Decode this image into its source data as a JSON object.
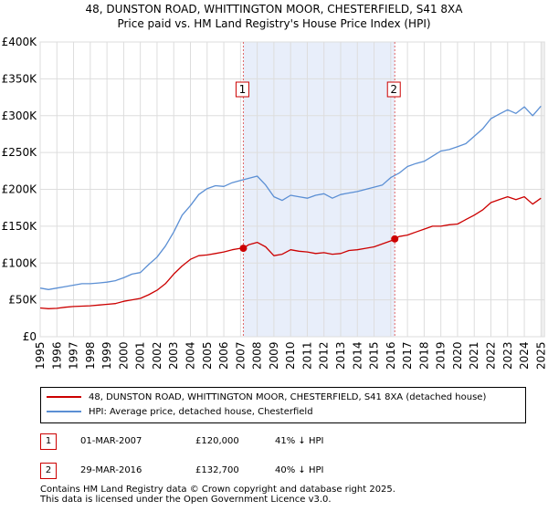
{
  "chart_data": {
    "type": "line",
    "title": "48, DUNSTON ROAD, WHITTINGTON MOOR, CHESTERFIELD, S41 8XA",
    "subtitle": "Price paid vs. HM Land Registry's House Price Index (HPI)",
    "xlabel": "",
    "ylabel": "",
    "xlim": [
      1995,
      2025.2
    ],
    "ylim": [
      0,
      400000
    ],
    "grid": true,
    "x_ticks": [
      "1995",
      "1996",
      "1997",
      "1998",
      "1999",
      "2000",
      "2001",
      "2002",
      "2003",
      "2004",
      "2005",
      "2006",
      "2007",
      "2008",
      "2009",
      "2010",
      "2011",
      "2012",
      "2013",
      "2014",
      "2015",
      "2016",
      "2017",
      "2018",
      "2019",
      "2020",
      "2021",
      "2022",
      "2023",
      "2024",
      "2025"
    ],
    "y_ticks": [
      {
        "value": 0,
        "label": "£0"
      },
      {
        "value": 50000,
        "label": "£50K"
      },
      {
        "value": 100000,
        "label": "£100K"
      },
      {
        "value": 150000,
        "label": "£150K"
      },
      {
        "value": 200000,
        "label": "£200K"
      },
      {
        "value": 250000,
        "label": "£250K"
      },
      {
        "value": 300000,
        "label": "£300K"
      },
      {
        "value": 350000,
        "label": "£350K"
      },
      {
        "value": 400000,
        "label": "£400K"
      }
    ],
    "shaded_region": {
      "from": 2007.17,
      "to": 2016.24
    },
    "markers": [
      {
        "id": "1",
        "x": 2007.17,
        "y": 120000
      },
      {
        "id": "2",
        "x": 2016.24,
        "y": 132700
      }
    ],
    "series": [
      {
        "name": "48, DUNSTON ROAD, WHITTINGTON MOOR, CHESTERFIELD, S41 8XA (detached house)",
        "color": "#cc0000",
        "x": [
          1995,
          1995.5,
          1996,
          1996.5,
          1997,
          1997.5,
          1998,
          1998.5,
          1999,
          1999.5,
          2000,
          2000.5,
          2001,
          2001.5,
          2002,
          2002.5,
          2003,
          2003.5,
          2004,
          2004.5,
          2005,
          2005.5,
          2006,
          2006.5,
          2007,
          2007.17,
          2007.5,
          2008,
          2008.5,
          2009,
          2009.5,
          2010,
          2010.5,
          2011,
          2011.5,
          2012,
          2012.5,
          2013,
          2013.5,
          2014,
          2014.5,
          2015,
          2015.5,
          2016,
          2016.24,
          2016.5,
          2017,
          2017.5,
          2018,
          2018.5,
          2019,
          2019.5,
          2020,
          2020.5,
          2021,
          2021.5,
          2022,
          2022.5,
          2023,
          2023.5,
          2024,
          2024.5,
          2025
        ],
        "values": [
          39000,
          38000,
          38500,
          40000,
          41000,
          41500,
          42000,
          43000,
          44000,
          45000,
          48000,
          50000,
          52000,
          57000,
          63000,
          72000,
          85000,
          96000,
          105000,
          110000,
          111000,
          113000,
          115000,
          118000,
          120000,
          120000,
          125000,
          128000,
          122000,
          110000,
          112000,
          118000,
          116000,
          115000,
          113000,
          114000,
          112000,
          113000,
          117000,
          118000,
          120000,
          122000,
          126000,
          130000,
          132700,
          136000,
          138000,
          142000,
          146000,
          150000,
          150000,
          152000,
          153000,
          159000,
          165000,
          172000,
          182000,
          186000,
          190000,
          186000,
          190000,
          180000,
          188000
        ]
      },
      {
        "name": "HPI: Average price, detached house, Chesterfield",
        "color": "#5b8fd4",
        "x": [
          1995,
          1995.5,
          1996,
          1996.5,
          1997,
          1997.5,
          1998,
          1998.5,
          1999,
          1999.5,
          2000,
          2000.5,
          2001,
          2001.5,
          2002,
          2002.5,
          2003,
          2003.5,
          2004,
          2004.5,
          2005,
          2005.5,
          2006,
          2006.5,
          2007,
          2007.5,
          2008,
          2008.5,
          2009,
          2009.5,
          2010,
          2010.5,
          2011,
          2011.5,
          2012,
          2012.5,
          2013,
          2013.5,
          2014,
          2014.5,
          2015,
          2015.5,
          2016,
          2016.5,
          2017,
          2017.5,
          2018,
          2018.5,
          2019,
          2019.5,
          2020,
          2020.5,
          2021,
          2021.5,
          2022,
          2022.5,
          2023,
          2023.5,
          2024,
          2024.5,
          2025
        ],
        "values": [
          66000,
          64000,
          66000,
          68000,
          70000,
          72000,
          72000,
          73000,
          74000,
          76000,
          80000,
          85000,
          87000,
          98000,
          108000,
          123000,
          142000,
          165000,
          178000,
          193000,
          201000,
          205000,
          204000,
          209000,
          212000,
          215000,
          218000,
          206000,
          190000,
          185000,
          192000,
          190000,
          188000,
          192000,
          194000,
          188000,
          193000,
          195000,
          197000,
          200000,
          203000,
          206000,
          216000,
          222000,
          231000,
          235000,
          238000,
          245000,
          252000,
          254000,
          258000,
          262000,
          272000,
          282000,
          296000,
          302000,
          308000,
          303000,
          312000,
          300000,
          313000
        ]
      }
    ]
  },
  "legend": {
    "entries": [
      {
        "label": "48, DUNSTON ROAD, WHITTINGTON MOOR, CHESTERFIELD, S41 8XA (detached house)",
        "color": "#cc0000"
      },
      {
        "label": "HPI: Average price, detached house, Chesterfield",
        "color": "#5b8fd4"
      }
    ]
  },
  "sales": [
    {
      "num": "1",
      "date": "01-MAR-2007",
      "price": "£120,000",
      "hpi": "41% ↓ HPI"
    },
    {
      "num": "2",
      "date": "29-MAR-2016",
      "price": "£132,700",
      "hpi": "40% ↓ HPI"
    }
  ],
  "footer": {
    "line1": "Contains HM Land Registry data © Crown copyright and database right 2025.",
    "line2": "This data is licensed under the Open Government Licence v3.0."
  }
}
